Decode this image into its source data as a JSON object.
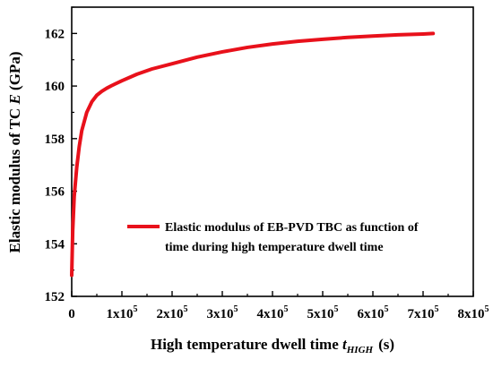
{
  "chart_data": {
    "type": "line",
    "xlabel": "High temperature dwell time",
    "xlabel_var": "t",
    "xlabel_sub": "HIGH",
    "xlabel_unit": "(s)",
    "ylabel": "Elastic modulus of TC",
    "ylabel_var": "E",
    "ylabel_unit": "(GPa)",
    "xlim": [
      0,
      800000
    ],
    "ylim": [
      152,
      163
    ],
    "x_ticks": [
      0,
      100000,
      200000,
      300000,
      400000,
      500000,
      600000,
      700000,
      800000
    ],
    "x_tick_labels": [
      {
        "base": "0",
        "exp": ""
      },
      {
        "base": "1x10",
        "exp": "5"
      },
      {
        "base": "2x10",
        "exp": "5"
      },
      {
        "base": "3x10",
        "exp": "5"
      },
      {
        "base": "4x10",
        "exp": "5"
      },
      {
        "base": "5x10",
        "exp": "5"
      },
      {
        "base": "6x10",
        "exp": "5"
      },
      {
        "base": "7x10",
        "exp": "5"
      },
      {
        "base": "8x10",
        "exp": "5"
      }
    ],
    "y_ticks": [
      152,
      154,
      156,
      158,
      160,
      162
    ],
    "y_tick_labels": [
      "152",
      "154",
      "156",
      "158",
      "160",
      "162"
    ],
    "legend_position": "center-right",
    "series": [
      {
        "name": "Elastic modulus of EB-PVD TBC as function of time during high temperature dwell time",
        "legend_lines": [
          "Elastic modulus of EB-PVD TBC as function of",
          "time during high temperature dwell time"
        ],
        "color": "#e8111b",
        "x": [
          0,
          2000,
          5000,
          10000,
          15000,
          20000,
          30000,
          40000,
          50000,
          60000,
          70000,
          80000,
          100000,
          130000,
          160000,
          200000,
          250000,
          300000,
          350000,
          400000,
          450000,
          500000,
          550000,
          600000,
          650000,
          700000,
          720000
        ],
        "y": [
          152.8,
          154.5,
          155.8,
          156.9,
          157.7,
          158.3,
          159.0,
          159.4,
          159.65,
          159.8,
          159.92,
          160.02,
          160.2,
          160.45,
          160.65,
          160.85,
          161.1,
          161.3,
          161.47,
          161.6,
          161.7,
          161.78,
          161.85,
          161.9,
          161.95,
          161.98,
          162.0
        ]
      }
    ]
  }
}
